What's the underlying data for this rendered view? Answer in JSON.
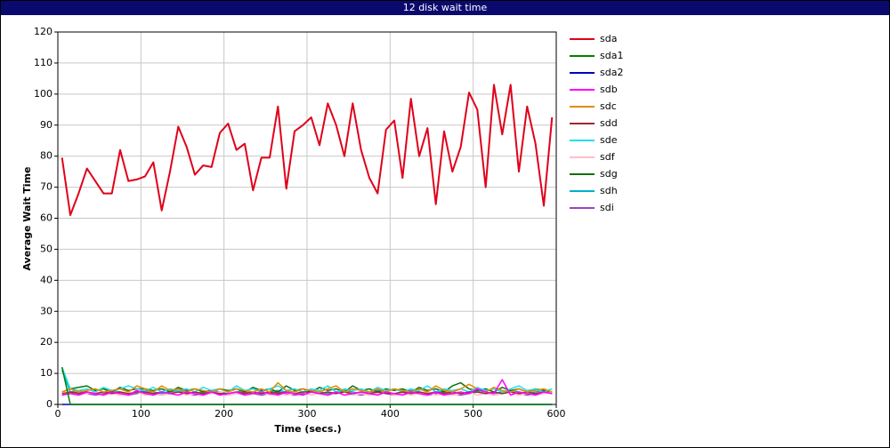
{
  "chart_data": {
    "type": "line",
    "title": "12 disk wait time",
    "x_label": "Time (secs.)",
    "y_label": "Average Wait Time",
    "xlim": [
      0,
      600
    ],
    "xticks": [
      0,
      100,
      200,
      300,
      400,
      500,
      600
    ],
    "ylim": [
      0,
      120
    ],
    "yticks": [
      0,
      10,
      20,
      30,
      40,
      50,
      60,
      70,
      80,
      90,
      100,
      110,
      120
    ],
    "grid": true,
    "legend": "right",
    "x": [
      5,
      15,
      25,
      35,
      45,
      55,
      65,
      75,
      85,
      95,
      105,
      115,
      125,
      135,
      145,
      155,
      165,
      175,
      185,
      195,
      205,
      215,
      225,
      235,
      245,
      255,
      265,
      275,
      285,
      295,
      305,
      315,
      325,
      335,
      345,
      355,
      365,
      375,
      385,
      395,
      405,
      415,
      425,
      435,
      445,
      455,
      465,
      475,
      485,
      495,
      505,
      515,
      525,
      535,
      545,
      555,
      565,
      575,
      585,
      595
    ],
    "series": [
      {
        "name": "sda",
        "color": "#e0001a",
        "values": [
          79.5,
          61,
          68,
          76,
          72,
          68,
          68,
          82,
          72,
          72.5,
          73.5,
          78,
          62.5,
          75,
          89.5,
          83,
          74,
          77,
          76.5,
          87.5,
          90.5,
          82,
          84,
          69,
          79.5,
          79.5,
          96,
          69.5,
          88,
          90,
          92.5,
          83.5,
          97,
          90,
          80,
          97,
          82,
          73,
          68,
          88.5,
          91.5,
          73,
          98.5,
          80,
          89,
          64.5,
          88,
          75,
          83,
          100.5,
          95,
          70,
          103,
          87,
          103,
          75,
          96,
          84,
          64,
          92.5
        ]
      },
      {
        "name": "sda1",
        "color": "#008000",
        "values": [
          12,
          0,
          0,
          0,
          0,
          0,
          0,
          0,
          0,
          0,
          0,
          0,
          0,
          0,
          0,
          0,
          0,
          0,
          0,
          0,
          0,
          0,
          0,
          0,
          0,
          0,
          0,
          0,
          0,
          0,
          0,
          0,
          0,
          0,
          0,
          0,
          0,
          0,
          0,
          0,
          0,
          0,
          0,
          0,
          0,
          0,
          0,
          0,
          0,
          0,
          0,
          0,
          0,
          0,
          0,
          0,
          0,
          0,
          0,
          0
        ]
      },
      {
        "name": "sda2",
        "color": "#0000c0",
        "values": [
          0,
          0,
          0,
          0,
          0,
          0,
          0,
          0,
          0,
          0,
          0,
          0,
          0,
          0,
          0,
          0,
          0,
          0,
          0,
          0,
          0,
          0,
          0,
          0,
          0,
          0,
          0,
          0,
          0,
          0,
          0,
          0,
          0,
          0,
          0,
          0,
          0,
          0,
          0,
          0,
          0,
          0,
          0,
          0,
          0,
          0,
          0,
          0,
          0,
          0,
          0,
          0,
          0,
          0,
          0,
          0,
          0,
          0,
          0,
          0
        ]
      },
      {
        "name": "sdb",
        "color": "#ff00ff",
        "values": [
          3,
          3.5,
          3,
          4,
          3.5,
          3,
          4,
          3.5,
          3,
          4.5,
          3.5,
          3,
          4,
          3.5,
          3,
          4,
          3.5,
          3,
          4,
          3,
          3.5,
          4,
          3,
          3.5,
          4,
          3.5,
          3,
          4,
          3.5,
          3,
          4,
          3.5,
          3,
          4,
          3,
          3.5,
          4,
          3.5,
          3,
          4,
          3.5,
          3,
          4,
          3.5,
          3,
          4,
          3,
          3.5,
          4,
          3.5,
          5,
          4,
          3.5,
          8,
          3,
          4,
          3.5,
          3,
          4,
          3.5
        ]
      },
      {
        "name": "sdc",
        "color": "#e08c00",
        "values": [
          4,
          5,
          4,
          4.5,
          5,
          4,
          4.5,
          5,
          4,
          6,
          5,
          4,
          6,
          4.5,
          5,
          4,
          5,
          4.5,
          4,
          5,
          4,
          5,
          4.5,
          4,
          5,
          4,
          7,
          4.5,
          4,
          5,
          4.5,
          4,
          5,
          6,
          4,
          5,
          4.5,
          4,
          5,
          4,
          5,
          4.5,
          4,
          5,
          4,
          6,
          4.5,
          4,
          5,
          6.5,
          5,
          4,
          5.5,
          4.5,
          4,
          5,
          4,
          4.5,
          5,
          4
        ]
      },
      {
        "name": "sdd",
        "color": "#a0282d",
        "values": [
          3.5,
          4,
          3.5,
          4,
          3.5,
          4,
          3.5,
          4,
          3.5,
          4,
          4,
          3.5,
          4,
          3.5,
          4,
          3.5,
          4,
          3.5,
          4,
          3.5,
          3.5,
          4,
          3.5,
          4,
          3.5,
          4,
          3.5,
          4,
          3.5,
          4,
          4,
          3.5,
          4,
          3.5,
          4,
          3.5,
          4,
          3.5,
          4,
          3.5,
          3.5,
          4,
          3.5,
          4,
          3.5,
          4,
          3.5,
          4,
          3.5,
          4,
          4,
          3.5,
          4,
          3.5,
          4,
          3.5,
          4,
          3.5,
          4,
          3.5
        ]
      },
      {
        "name": "sde",
        "color": "#20e0f0",
        "values": [
          12,
          5,
          4.5,
          5,
          4,
          5.5,
          4.5,
          5,
          6,
          5,
          4.5,
          5.5,
          4,
          5,
          4.5,
          5,
          4,
          5.5,
          4.5,
          5,
          4,
          6,
          4.5,
          5,
          4,
          5,
          6,
          4.5,
          5,
          4,
          5,
          4.5,
          6,
          4,
          5,
          4.5,
          5,
          4,
          5.5,
          4.5,
          5,
          4,
          5,
          4.5,
          6,
          4,
          5,
          4.5,
          5,
          4,
          5.5,
          4.5,
          5,
          4,
          5,
          6,
          4.5,
          5,
          4,
          5
        ]
      },
      {
        "name": "sdf",
        "color": "#ffc0c8",
        "values": [
          3,
          3.5,
          3,
          3.5,
          4,
          3,
          3.5,
          3,
          3.5,
          4,
          3,
          3.5,
          3,
          3.5,
          4,
          3,
          3.5,
          3,
          3.5,
          4,
          3,
          3.5,
          3,
          3.5,
          4,
          3,
          3.5,
          3,
          3.5,
          4,
          3,
          3.5,
          3,
          3.5,
          4,
          3,
          3.5,
          3,
          3.5,
          4,
          3,
          3.5,
          3,
          3.5,
          4,
          3,
          3.5,
          3,
          3.5,
          4,
          3,
          3.5,
          3,
          3.5,
          4,
          3,
          3.5,
          3,
          3.5,
          4
        ]
      },
      {
        "name": "sdg",
        "color": "#107010",
        "values": [
          4,
          5,
          5.5,
          6,
          4.5,
          5,
          4,
          5.5,
          4.5,
          5,
          5,
          4.5,
          5,
          4,
          5.5,
          4.5,
          5,
          4,
          4.5,
          5,
          4.5,
          5,
          4,
          5.5,
          4.5,
          5,
          4,
          6,
          4.5,
          5,
          4,
          5.5,
          4.5,
          5,
          4,
          6,
          4.5,
          5,
          4,
          5,
          4.5,
          5,
          4,
          5.5,
          4.5,
          5,
          4,
          6,
          7,
          5,
          4.5,
          5,
          4,
          5.5,
          4.5,
          5,
          4,
          5,
          4.5,
          4
        ]
      },
      {
        "name": "sdh",
        "color": "#00b0c8",
        "values": [
          11,
          4,
          4.5,
          4,
          3.5,
          4,
          4.5,
          4,
          3.5,
          4,
          4.5,
          4,
          3.5,
          4,
          4.5,
          4,
          3.5,
          4,
          4.5,
          4,
          3.5,
          4,
          4.5,
          4,
          3.5,
          4,
          4.5,
          4,
          3.5,
          4,
          4.5,
          4,
          3.5,
          4,
          4.5,
          4,
          3.5,
          4,
          4.5,
          4,
          3.5,
          4,
          4.5,
          4,
          3.5,
          4,
          4.5,
          4,
          3.5,
          4,
          4.5,
          4,
          3.5,
          4,
          4.5,
          4,
          3.5,
          4,
          4.5,
          4
        ]
      },
      {
        "name": "sdi",
        "color": "#a040c0",
        "values": [
          3,
          3.5,
          4,
          3.5,
          3,
          3.5,
          4,
          3.5,
          3,
          3.5,
          4,
          3.5,
          3,
          3.5,
          4,
          3.5,
          3,
          3.5,
          4,
          3.5,
          3,
          3.5,
          4,
          3.5,
          3,
          3.5,
          4,
          3.5,
          3,
          3.5,
          4,
          3.5,
          3,
          3.5,
          4,
          3.5,
          3,
          3.5,
          4,
          3.5,
          3,
          3.5,
          4,
          3.5,
          3,
          3.5,
          4,
          3.5,
          3,
          3.5,
          4,
          3.5,
          3,
          3.5,
          4,
          3.5,
          3,
          3.5,
          4,
          3.5
        ]
      }
    ]
  }
}
